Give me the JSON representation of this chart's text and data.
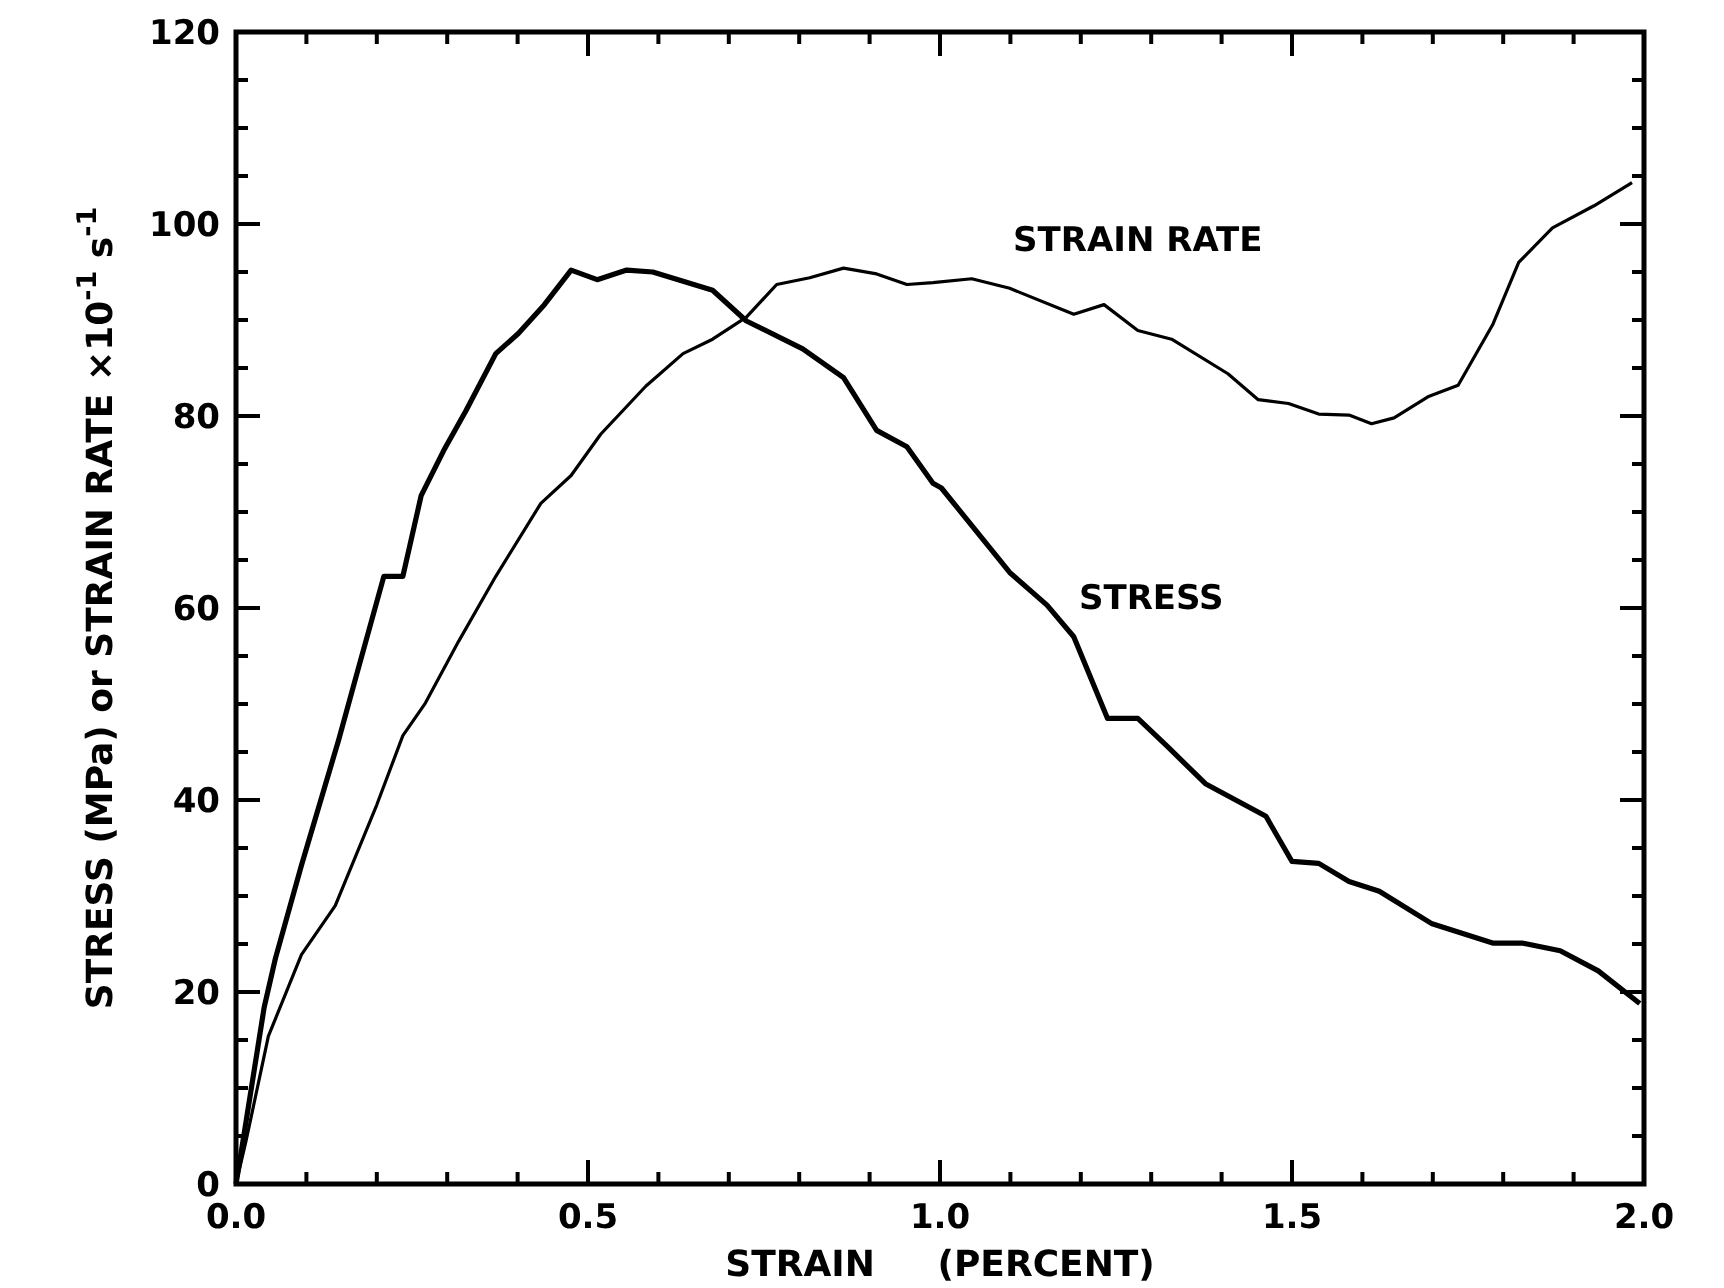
{
  "chart_data": {
    "type": "line",
    "xlabel": "STRAIN     (PERCENT)",
    "ylabel": "STRESS (MPa) or STRAIN RATE ×10$^{-1}$ s$^{-1}$",
    "xlim": [
      0,
      2
    ],
    "ylim": [
      0,
      120
    ],
    "xticks": [
      {
        "value": 0,
        "label": "0.0"
      },
      0.5,
      {
        "value": 1,
        "label": "1.0"
      },
      1.5,
      {
        "value": 2,
        "label": "2.0"
      }
    ],
    "yticks": [
      0,
      20,
      40,
      60,
      80,
      100,
      120
    ],
    "grid": false,
    "marker": "none",
    "line_style": "solid",
    "series": [
      {
        "name": "STRESS",
        "color": "#000000",
        "x": [
          0,
          0.008,
          0.04,
          0.056,
          0.093,
          0.146,
          0.173,
          0.21,
          0.237,
          0.263,
          0.295,
          0.327,
          0.369,
          0.401,
          0.438,
          0.476,
          0.513,
          0.555,
          0.592,
          0.677,
          0.725,
          0.805,
          0.863,
          0.91,
          0.953,
          0.99,
          1.002,
          1.099,
          1.152,
          1.19,
          1.238,
          1.281,
          1.324,
          1.377,
          1.463,
          1.5,
          1.538,
          1.581,
          1.624,
          1.699,
          1.785,
          1.827,
          1.881,
          1.935,
          1.994
        ],
        "values": [
          0,
          3.6,
          18.4,
          23.5,
          33.2,
          46.3,
          53.5,
          63.3,
          63.3,
          71.7,
          76.4,
          80.6,
          86.5,
          88.6,
          91.6,
          95.2,
          94.2,
          95.2,
          95,
          93.1,
          89.9,
          87,
          84,
          78.5,
          76.8,
          73,
          72.5,
          63.7,
          60.3,
          57,
          48.5,
          48.5,
          45.5,
          41.7,
          38.3,
          33.6,
          33.4,
          31.5,
          30.5,
          27.1,
          25.1,
          25.1,
          24.3,
          22.2,
          18.8
        ]
      },
      {
        "name": "STRAIN RATE",
        "color": "#000000",
        "x": [
          0,
          0.014,
          0.046,
          0.093,
          0.141,
          0.2,
          0.237,
          0.269,
          0.316,
          0.369,
          0.433,
          0.476,
          0.518,
          0.582,
          0.635,
          0.677,
          0.725,
          0.768,
          0.815,
          0.863,
          0.91,
          0.953,
          0.99,
          1.045,
          1.099,
          1.19,
          1.233,
          1.281,
          1.329,
          1.409,
          1.452,
          1.495,
          1.538,
          1.581,
          1.613,
          1.645,
          1.693,
          1.736,
          1.785,
          1.822,
          1.87,
          1.929,
          1.983
        ],
        "values": [
          0,
          4.4,
          15.4,
          23.9,
          29,
          39.5,
          46.7,
          50.1,
          56.5,
          63.3,
          70.9,
          73.8,
          78.1,
          83.1,
          86.5,
          88,
          90.3,
          93.7,
          94.4,
          95.4,
          94.8,
          93.7,
          93.9,
          94.3,
          93.3,
          90.6,
          91.6,
          88.9,
          88,
          84.4,
          81.7,
          81.3,
          80.2,
          80.1,
          79.2,
          79.8,
          82,
          83.2,
          89.5,
          96,
          99.6,
          101.9,
          104.3
        ]
      }
    ]
  }
}
